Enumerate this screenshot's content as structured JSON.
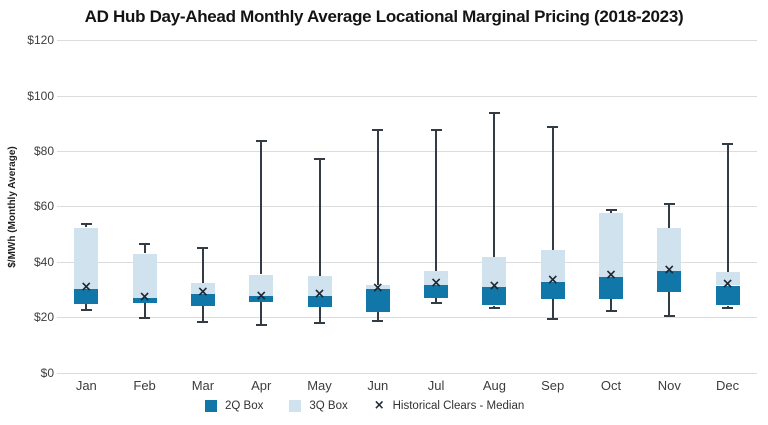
{
  "colors": {
    "box_2q": "#1177A8",
    "box_3q": "#CFE2EE",
    "whisker": "#333B45",
    "x_marker": "#1C2733",
    "gridline": "#DCDCDC",
    "tick_text": "#3D3D3D",
    "title_text": "#141414"
  },
  "legend": {
    "items": [
      {
        "label": "2Q Box",
        "color": "#1177A8",
        "type": "box-swatch"
      },
      {
        "label": "3Q Box",
        "color": "#CFE2EE",
        "type": "box-swatch"
      },
      {
        "label": "Historical Clears - Median",
        "symbol": "×",
        "type": "x-marker"
      }
    ]
  },
  "chart_data": {
    "type": "box",
    "title": "AD Hub Day-Ahead Monthly Average Locational Marginal Pricing (2018-2023)",
    "xlabel": "",
    "ylabel": "$/MWh (Monthly Average)",
    "ylim": [
      0,
      120
    ],
    "y_tick_step": 20,
    "y_tick_prefix": "$",
    "grid": "horizontal",
    "legend_position": "bottom",
    "categories": [
      "Jan",
      "Feb",
      "Mar",
      "Apr",
      "May",
      "Jun",
      "Jul",
      "Aug",
      "Sep",
      "Oct",
      "Nov",
      "Dec"
    ],
    "boxes": [
      {
        "month": "Jan",
        "whisker_low": 22.5,
        "q1": 24.8,
        "median": 30.2,
        "q3": 52.4,
        "whisker_high": 53.6,
        "hist_clear_median": 30.8
      },
      {
        "month": "Feb",
        "whisker_low": 19.8,
        "q1": 25.2,
        "median": 26.9,
        "q3": 43.0,
        "whisker_high": 46.3,
        "hist_clear_median": 27.2
      },
      {
        "month": "Mar",
        "whisker_low": 18.2,
        "q1": 24.0,
        "median": 28.2,
        "q3": 32.2,
        "whisker_high": 45.1,
        "hist_clear_median": 29.2
      },
      {
        "month": "Apr",
        "whisker_low": 17.0,
        "q1": 25.4,
        "median": 27.5,
        "q3": 35.4,
        "whisker_high": 83.6,
        "hist_clear_median": 27.8
      },
      {
        "month": "May",
        "whisker_low": 18.0,
        "q1": 23.6,
        "median": 27.6,
        "q3": 34.8,
        "whisker_high": 77.3,
        "hist_clear_median": 28.2
      },
      {
        "month": "Jun",
        "whisker_low": 18.8,
        "q1": 21.8,
        "median": 30.1,
        "q3": 31.7,
        "whisker_high": 87.5,
        "hist_clear_median": 30.6
      },
      {
        "month": "Jul",
        "whisker_low": 25.0,
        "q1": 27.0,
        "median": 31.5,
        "q3": 36.6,
        "whisker_high": 87.5,
        "hist_clear_median": 32.2
      },
      {
        "month": "Aug",
        "whisker_low": 23.2,
        "q1": 24.2,
        "median": 30.8,
        "q3": 41.8,
        "whisker_high": 93.9,
        "hist_clear_median": 31.2
      },
      {
        "month": "Sep",
        "whisker_low": 19.5,
        "q1": 26.7,
        "median": 32.6,
        "q3": 44.2,
        "whisker_high": 88.7,
        "hist_clear_median": 33.3
      },
      {
        "month": "Oct",
        "whisker_low": 22.2,
        "q1": 26.4,
        "median": 34.4,
        "q3": 57.7,
        "whisker_high": 58.7,
        "hist_clear_median": 35.1
      },
      {
        "month": "Nov",
        "whisker_low": 20.6,
        "q1": 29.0,
        "median": 36.6,
        "q3": 52.3,
        "whisker_high": 60.8,
        "hist_clear_median": 37.2
      },
      {
        "month": "Dec",
        "whisker_low": 23.3,
        "q1": 24.2,
        "median": 31.4,
        "q3": 36.4,
        "whisker_high": 82.4,
        "hist_clear_median": 32.1
      }
    ]
  }
}
